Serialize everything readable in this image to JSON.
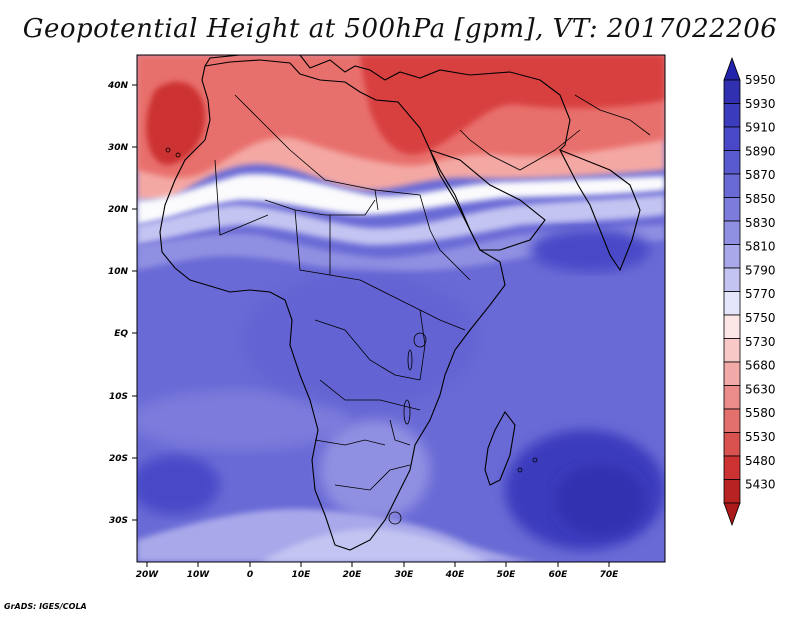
{
  "title": "Geopotential Height at 500hPa [gpm], VT: 2017022206",
  "credit": "GrADS: IGES/COLA",
  "map": {
    "lon_range": [
      -25,
      80
    ],
    "lat_range": [
      -37,
      45
    ],
    "x_ticks": [
      "20W",
      "10W",
      "0",
      "10E",
      "20E",
      "30E",
      "40E",
      "50E",
      "60E",
      "70E"
    ],
    "y_ticks": [
      "40N",
      "30N",
      "20N",
      "10N",
      "EQ",
      "10S",
      "20S",
      "30S"
    ]
  },
  "legend": {
    "levels": [
      "5950",
      "5930",
      "5910",
      "5890",
      "5870",
      "5850",
      "5830",
      "5810",
      "5790",
      "5770",
      "5750",
      "5730",
      "5680",
      "5630",
      "5580",
      "5530",
      "5480",
      "5430"
    ],
    "colors": {
      "top_arrow": "#2222aa",
      "bottom_arrow": "#aa1a1a",
      "blues": [
        "#3030b0",
        "#3b3bbd",
        "#4848c8",
        "#5a5ad0",
        "#6a6ad6",
        "#7c7cdc",
        "#9090e2",
        "#a8a8ea",
        "#c4c4f2",
        "#e6e6fa"
      ],
      "reds": [
        "#fde6e6",
        "#f8c8c6",
        "#f2aaa8",
        "#ec8c8a",
        "#e4706e",
        "#da5250",
        "#cc3232",
        "#b82222"
      ]
    }
  },
  "field_colors": {
    "red_light": "#f4a8a4",
    "red_mid": "#e8706c",
    "red_dark": "#d84040",
    "white_band": "#fbfbfd",
    "blue_light": "#a8a8ea",
    "blue_mid": "#6a6ad6",
    "blue_dark": "#4040c0",
    "land_border": "#000000"
  }
}
